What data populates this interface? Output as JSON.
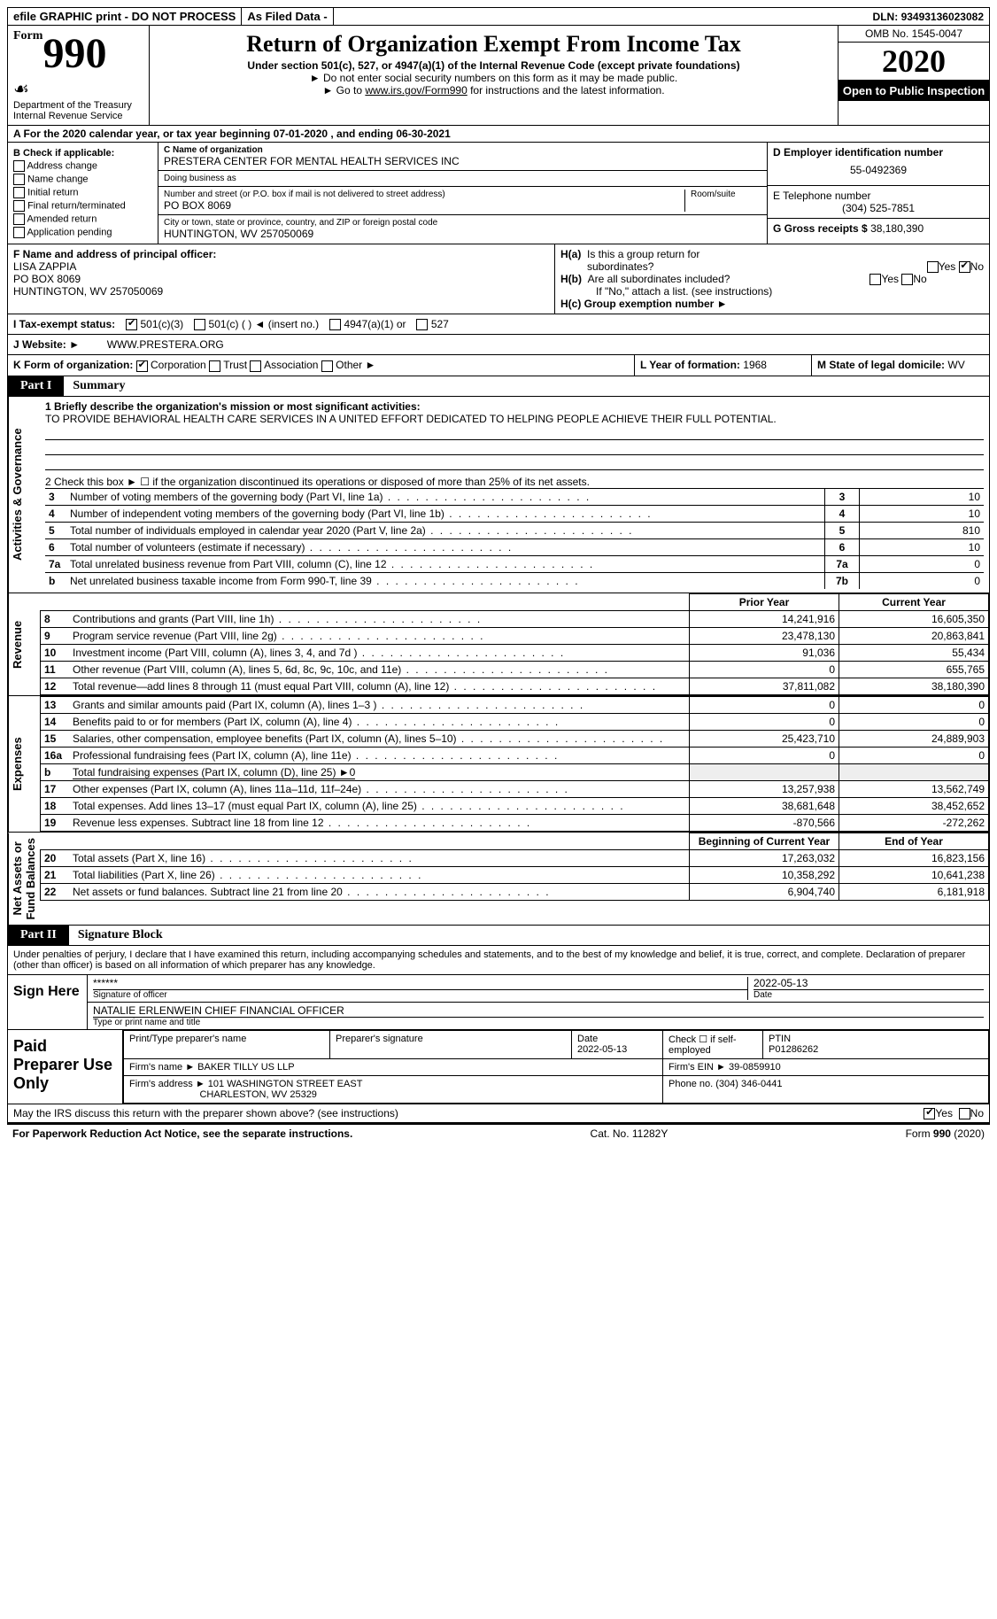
{
  "topbar": {
    "efile": "efile GRAPHIC print - DO NOT PROCESS",
    "asfiled": "As Filed Data -",
    "dln_label": "DLN:",
    "dln": "93493136023082"
  },
  "header": {
    "form_small": "Form",
    "form_num": "990",
    "dept": "Department of the Treasury\nInternal Revenue Service",
    "title": "Return of Organization Exempt From Income Tax",
    "sub1": "Under section 501(c), 527, or 4947(a)(1) of the Internal Revenue Code (except private foundations)",
    "sub2": "► Do not enter social security numbers on this form as it may be made public.",
    "sub3_pre": "► Go to ",
    "sub3_link": "www.irs.gov/Form990",
    "sub3_post": " for instructions and the latest information.",
    "omb": "OMB No. 1545-0047",
    "year": "2020",
    "open": "Open to Public Inspection"
  },
  "row_a": "A   For the 2020 calendar year, or tax year beginning 07-01-2020   , and ending 06-30-2021",
  "checkB": {
    "heading": "B Check if applicable:",
    "items": [
      "Address change",
      "Name change",
      "Initial return",
      "Final return/terminated",
      "Amended return",
      "Application pending"
    ]
  },
  "C": {
    "name_label": "C Name of organization",
    "name": "PRESTERA CENTER FOR MENTAL HEALTH SERVICES INC",
    "dba_label": "Doing business as",
    "dba": "",
    "street_label": "Number and street (or P.O. box if mail is not delivered to street address)",
    "room_label": "Room/suite",
    "street": "PO BOX 8069",
    "city_label": "City or town, state or province, country, and ZIP or foreign postal code",
    "city": "HUNTINGTON, WV  257050069"
  },
  "D": {
    "label": "D Employer identification number",
    "ein": "55-0492369"
  },
  "E": {
    "label": "E Telephone number",
    "phone": "(304) 525-7851"
  },
  "G": {
    "label": "G Gross receipts $",
    "amount": "38,180,390"
  },
  "F": {
    "label": "F  Name and address of principal officer:",
    "name": "LISA ZAPPIA",
    "street": "PO BOX 8069",
    "city": "HUNTINGTON, WV  257050069"
  },
  "H": {
    "a_label": "H(a)  Is this a group return for subordinates?",
    "a_no_checked": true,
    "b_label": "H(b)  Are all subordinates included?",
    "b_note": "If \"No,\" attach a list. (see instructions)",
    "c_label": "H(c)  Group exemption number ►"
  },
  "I": {
    "label": "I   Tax-exempt status:",
    "opt1": "501(c)(3)",
    "opt2": "501(c) (   ) ◄ (insert no.)",
    "opt3": "4947(a)(1) or",
    "opt4": "527"
  },
  "J": {
    "label": "J   Website: ►",
    "value": "WWW.PRESTERA.ORG"
  },
  "K": {
    "label": "K Form of organization:",
    "opts": [
      "Corporation",
      "Trust",
      "Association",
      "Other ►"
    ]
  },
  "L": {
    "label": "L Year of formation:",
    "value": "1968"
  },
  "M": {
    "label": "M State of legal domicile:",
    "value": "WV"
  },
  "part1": {
    "label": "Part I",
    "title": "Summary",
    "l1_label": "1 Briefly describe the organization's mission or most significant activities:",
    "l1_text": "TO PROVIDE BEHAVIORAL HEALTH CARE SERVICES IN A UNITED EFFORT DEDICATED TO HELPING PEOPLE ACHIEVE THEIR FULL POTENTIAL.",
    "l2": "2   Check this box ► ☐ if the organization discontinued its operations or disposed of more than 25% of its net assets.",
    "gov_lines": [
      {
        "n": "3",
        "desc": "Number of voting members of the governing body (Part VI, line 1a)",
        "box": "3",
        "val": "10"
      },
      {
        "n": "4",
        "desc": "Number of independent voting members of the governing body (Part VI, line 1b)",
        "box": "4",
        "val": "10"
      },
      {
        "n": "5",
        "desc": "Total number of individuals employed in calendar year 2020 (Part V, line 2a)",
        "box": "5",
        "val": "810"
      },
      {
        "n": "6",
        "desc": "Total number of volunteers (estimate if necessary)",
        "box": "6",
        "val": "10"
      },
      {
        "n": "7a",
        "desc": "Total unrelated business revenue from Part VIII, column (C), line 12",
        "box": "7a",
        "val": "0"
      },
      {
        "n": "b",
        "desc": "Net unrelated business taxable income from Form 990-T, line 39",
        "box": "7b",
        "val": "0"
      }
    ],
    "sections": [
      {
        "vert": "Revenue",
        "header": {
          "prior": "Prior Year",
          "current": "Current Year"
        },
        "rows": [
          {
            "n": "8",
            "d": "Contributions and grants (Part VIII, line 1h)",
            "p": "14,241,916",
            "c": "16,605,350"
          },
          {
            "n": "9",
            "d": "Program service revenue (Part VIII, line 2g)",
            "p": "23,478,130",
            "c": "20,863,841"
          },
          {
            "n": "10",
            "d": "Investment income (Part VIII, column (A), lines 3, 4, and 7d )",
            "p": "91,036",
            "c": "55,434"
          },
          {
            "n": "11",
            "d": "Other revenue (Part VIII, column (A), lines 5, 6d, 8c, 9c, 10c, and 11e)",
            "p": "0",
            "c": "655,765"
          },
          {
            "n": "12",
            "d": "Total revenue—add lines 8 through 11 (must equal Part VIII, column (A), line 12)",
            "p": "37,811,082",
            "c": "38,180,390"
          }
        ]
      },
      {
        "vert": "Expenses",
        "rows": [
          {
            "n": "13",
            "d": "Grants and similar amounts paid (Part IX, column (A), lines 1–3 )",
            "p": "0",
            "c": "0"
          },
          {
            "n": "14",
            "d": "Benefits paid to or for members (Part IX, column (A), line 4)",
            "p": "0",
            "c": "0"
          },
          {
            "n": "15",
            "d": "Salaries, other compensation, employee benefits (Part IX, column (A), lines 5–10)",
            "p": "25,423,710",
            "c": "24,889,903"
          },
          {
            "n": "16a",
            "d": "Professional fundraising fees (Part IX, column (A), line 11e)",
            "p": "0",
            "c": "0"
          },
          {
            "n": "b",
            "d": "Total fundraising expenses (Part IX, column (D), line 25) ►0",
            "p": "",
            "c": "",
            "noval": true
          },
          {
            "n": "17",
            "d": "Other expenses (Part IX, column (A), lines 11a–11d, 11f–24e)",
            "p": "13,257,938",
            "c": "13,562,749"
          },
          {
            "n": "18",
            "d": "Total expenses. Add lines 13–17 (must equal Part IX, column (A), line 25)",
            "p": "38,681,648",
            "c": "38,452,652"
          },
          {
            "n": "19",
            "d": "Revenue less expenses. Subtract line 18 from line 12",
            "p": "-870,566",
            "c": "-272,262"
          }
        ]
      },
      {
        "vert": "Net Assets or\nFund Balances",
        "header": {
          "prior": "Beginning of Current Year",
          "current": "End of Year"
        },
        "rows": [
          {
            "n": "20",
            "d": "Total assets (Part X, line 16)",
            "p": "17,263,032",
            "c": "16,823,156"
          },
          {
            "n": "21",
            "d": "Total liabilities (Part X, line 26)",
            "p": "10,358,292",
            "c": "10,641,238"
          },
          {
            "n": "22",
            "d": "Net assets or fund balances. Subtract line 21 from line 20",
            "p": "6,904,740",
            "c": "6,181,918"
          }
        ]
      }
    ],
    "vert_gov": "Activities & Governance"
  },
  "part2": {
    "label": "Part II",
    "title": "Signature Block",
    "penalty": "Under penalties of perjury, I declare that I have examined this return, including accompanying schedules and statements, and to the best of my knowledge and belief, it is true, correct, and complete. Declaration of preparer (other than officer) is based on all information of which preparer has any knowledge.",
    "sign_here": "Sign Here",
    "stars": "******",
    "sig_officer": "Signature of officer",
    "sig_date": "2022-05-13",
    "date_label": "Date",
    "officer_name": "NATALIE ERLENWEIN  CHIEF FINANCIAL OFFICER",
    "type_name": "Type or print name and title",
    "paid_prep": "Paid Preparer Use Only",
    "p_name_l": "Print/Type preparer's name",
    "p_sig_l": "Preparer's signature",
    "p_date_l": "Date",
    "p_date": "2022-05-13",
    "p_check_l": "Check ☐ if self-employed",
    "ptin_l": "PTIN",
    "ptin": "P01286262",
    "firm_name_l": "Firm's name      ►",
    "firm_name": "BAKER TILLY US LLP",
    "firm_ein_l": "Firm's EIN ►",
    "firm_ein": "39-0859910",
    "firm_addr_l": "Firm's address ►",
    "firm_addr": "101 WASHINGTON STREET EAST",
    "firm_city": "CHARLESTON, WV  25329",
    "phone_l": "Phone no.",
    "phone": "(304) 346-0441",
    "irs_discuss": "May the IRS discuss this return with the preparer shown above? (see instructions)",
    "paperwork": "For Paperwork Reduction Act Notice, see the separate instructions.",
    "catno": "Cat. No. 11282Y",
    "formfoot": "Form 990 (2020)"
  }
}
